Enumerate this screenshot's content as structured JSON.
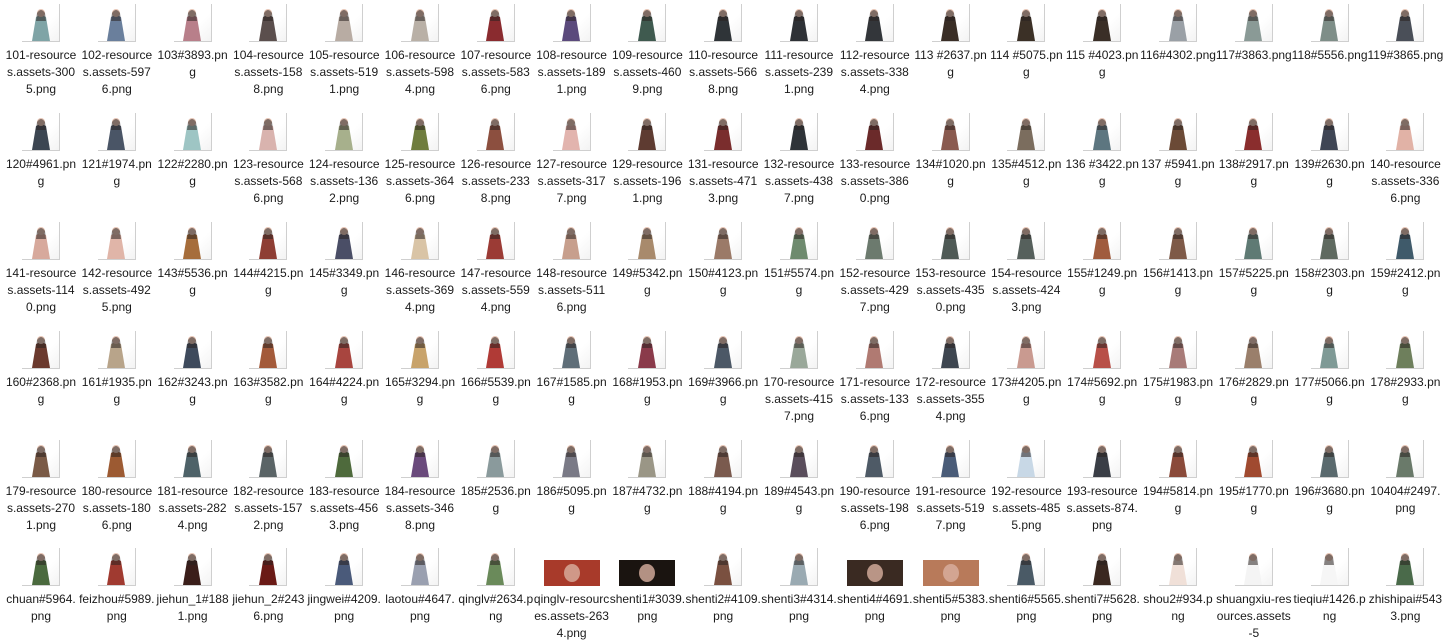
{
  "files": [
    {
      "name": "101-resources.assets-3005.png",
      "c": "#7fa4a6"
    },
    {
      "name": "102-resources.assets-5976.png",
      "c": "#6a7f9c"
    },
    {
      "name": "103#3893.png",
      "c": "#b87f8a"
    },
    {
      "name": "104-resources.assets-1588.png",
      "c": "#5b4f4d"
    },
    {
      "name": "105-resources.assets-5191.png",
      "c": "#b8aca3"
    },
    {
      "name": "106-resources.assets-5984.png",
      "c": "#b9b0a6"
    },
    {
      "name": "107-resources.assets-5836.png",
      "c": "#8a2b2f"
    },
    {
      "name": "108-resources.assets-1891.png",
      "c": "#5b4a7c"
    },
    {
      "name": "109-resources.assets-4609.png",
      "c": "#3f5a4f"
    },
    {
      "name": "110-resources.assets-5668.png",
      "c": "#2f3438"
    },
    {
      "name": "111-resources.assets-2391.png",
      "c": "#2e3136"
    },
    {
      "name": "112-resources.assets-3384.png",
      "c": "#33363a"
    },
    {
      "name": "113 #2637.png",
      "c": "#3a2e26"
    },
    {
      "name": "114 #5075.png",
      "c": "#3b3026"
    },
    {
      "name": "115 #4023.png",
      "c": "#3a2f27"
    },
    {
      "name": "116#4302.png",
      "c": "#9aa0a6"
    },
    {
      "name": "117#3863.png",
      "c": "#8a9a96"
    },
    {
      "name": "118#5556.png",
      "c": "#7e8e88"
    },
    {
      "name": "119#3865.png",
      "c": "#4a4f58"
    },
    {
      "name": "120#4961.png",
      "c": "#3c4652"
    },
    {
      "name": "121#1974.png",
      "c": "#4a5566"
    },
    {
      "name": "122#2280.png",
      "c": "#9ec5c4"
    },
    {
      "name": "123-resources.assets-5686.png",
      "c": "#d9b3ae"
    },
    {
      "name": "124-resources.assets-1362.png",
      "c": "#a7b08c"
    },
    {
      "name": "125-resources.assets-3646.png",
      "c": "#6f7d3e"
    },
    {
      "name": "126-resources.assets-2338.png",
      "c": "#8c4f3f"
    },
    {
      "name": "127-resources.assets-3177.png",
      "c": "#e2b4ae"
    },
    {
      "name": "129-resources.assets-1961.png",
      "c": "#5e3b31"
    },
    {
      "name": "131-resources.assets-4713.png",
      "c": "#7a2d2d"
    },
    {
      "name": "132-resources.assets-4387.png",
      "c": "#2e3338"
    },
    {
      "name": "133-resources.assets-3860.png",
      "c": "#6b2a2a"
    },
    {
      "name": "134#1020.png",
      "c": "#8a5a4f"
    },
    {
      "name": "135#4512.png",
      "c": "#7b6d5e"
    },
    {
      "name": "136 #3422.png",
      "c": "#5d7680"
    },
    {
      "name": "137 #5941.png",
      "c": "#6b4a36"
    },
    {
      "name": "138#2917.png",
      "c": "#8a2d2d"
    },
    {
      "name": "139#2630.png",
      "c": "#3f4655"
    },
    {
      "name": "140-resources.assets-3366.png",
      "c": "#e1b2a6"
    },
    {
      "name": "141-resources.assets-1140.png",
      "c": "#d7a99c"
    },
    {
      "name": "142-resources.assets-4925.png",
      "c": "#e0b5a8"
    },
    {
      "name": "143#5536.png",
      "c": "#a66d3b"
    },
    {
      "name": "144#4215.png",
      "c": "#8e3e34"
    },
    {
      "name": "145#3349.png",
      "c": "#4a4e66"
    },
    {
      "name": "146-resources.assets-3694.png",
      "c": "#d9c4a6"
    },
    {
      "name": "147-resources.assets-5594.png",
      "c": "#9b3b35"
    },
    {
      "name": "148-resources.assets-5116.png",
      "c": "#c79f8d"
    },
    {
      "name": "149#5342.png",
      "c": "#a88a6c"
    },
    {
      "name": "150#4123.png",
      "c": "#9b7a68"
    },
    {
      "name": "151#5574.png",
      "c": "#6e8a6e"
    },
    {
      "name": "152-resources.assets-4297.png",
      "c": "#6c7a6e"
    },
    {
      "name": "153-resources.assets-4350.png",
      "c": "#4f5a56"
    },
    {
      "name": "154-resources.assets-4243.png",
      "c": "#56605c"
    },
    {
      "name": "155#1249.png",
      "c": "#a05c3e"
    },
    {
      "name": "156#1413.png",
      "c": "#7e5a48"
    },
    {
      "name": "157#5225.png",
      "c": "#5f7a74"
    },
    {
      "name": "158#2303.png",
      "c": "#5f6a60"
    },
    {
      "name": "159#2412.png",
      "c": "#3f5a6a"
    },
    {
      "name": "160#2368.png",
      "c": "#6b3a2e"
    },
    {
      "name": "161#1935.png",
      "c": "#b8a48a"
    },
    {
      "name": "162#3243.png",
      "c": "#3e4a5c"
    },
    {
      "name": "163#3582.png",
      "c": "#a35a3a"
    },
    {
      "name": "164#4224.png",
      "c": "#a8453f"
    },
    {
      "name": "165#3294.png",
      "c": "#c8a36b"
    },
    {
      "name": "166#5539.png",
      "c": "#b03a36"
    },
    {
      "name": "167#1585.png",
      "c": "#5f6e78"
    },
    {
      "name": "168#1953.png",
      "c": "#8a3a4a"
    },
    {
      "name": "169#3966.png",
      "c": "#4c5866"
    },
    {
      "name": "170-resources.assets-4157.png",
      "c": "#9aa89a"
    },
    {
      "name": "171-resources.assets-1336.png",
      "c": "#b07a72"
    },
    {
      "name": "172-resources.assets-3554.png",
      "c": "#3e4650"
    },
    {
      "name": "173#4205.png",
      "c": "#c99a90"
    },
    {
      "name": "174#5692.png",
      "c": "#b85048"
    },
    {
      "name": "175#1983.png",
      "c": "#a87b78"
    },
    {
      "name": "176#2829.png",
      "c": "#9a7f6b"
    },
    {
      "name": "177#5066.png",
      "c": "#7f9a96"
    },
    {
      "name": "178#2933.png",
      "c": "#6e7f5c"
    },
    {
      "name": "179-resources.assets-2701.png",
      "c": "#7a5a46"
    },
    {
      "name": "180-resources.assets-1806.png",
      "c": "#9c5a32"
    },
    {
      "name": "181-resources.assets-2824.png",
      "c": "#4e6268"
    },
    {
      "name": "182-resources.assets-1572.png",
      "c": "#5a6466"
    },
    {
      "name": "183-resources.assets-4563.png",
      "c": "#4e6a3c"
    },
    {
      "name": "184-resources.assets-3468.png",
      "c": "#6a4a7c"
    },
    {
      "name": "185#2536.png",
      "c": "#8a9a9c"
    },
    {
      "name": "186#5095.png",
      "c": "#7a7a86"
    },
    {
      "name": "187#4732.png",
      "c": "#9a9686"
    },
    {
      "name": "188#4194.png",
      "c": "#7a5a4e"
    },
    {
      "name": "189#4543.png",
      "c": "#5a4e5c"
    },
    {
      "name": "190-resources.assets-1986.png",
      "c": "#4e5a66"
    },
    {
      "name": "191-resources.assets-5197.png",
      "c": "#4a5c78"
    },
    {
      "name": "192-resources.assets-4855.png",
      "c": "#c8d8e6"
    },
    {
      "name": "193-resources.assets-874.png",
      "c": "#3a3e46"
    },
    {
      "name": "194#5814.png",
      "c": "#8a4a3a"
    },
    {
      "name": "195#1770.png",
      "c": "#a04a30"
    },
    {
      "name": "196#3680.png",
      "c": "#5a6a6e"
    },
    {
      "name": "10404#2497.png",
      "c": "#6a7a6a"
    },
    {
      "name": "chuan#5964.png",
      "c": "#4a6a3e"
    },
    {
      "name": "feizhou#5989.png",
      "c": "#a03a30"
    },
    {
      "name": "jiehun_1#1881.png",
      "c": "#3a1e1a"
    },
    {
      "name": "jiehun_2#2436.png",
      "c": "#6a1a16"
    },
    {
      "name": "jingwei#4209.png",
      "c": "#4a5a7a"
    },
    {
      "name": "laotou#4647.png",
      "c": "#9aa0b0"
    },
    {
      "name": "qinglv#2634.png",
      "c": "#6a8a5a"
    },
    {
      "name": "qinglv-resources.assets-2634.png",
      "c": "#a83a2a"
    },
    {
      "name": "shenti1#3039.png",
      "c": "#1a1410"
    },
    {
      "name": "shenti2#4109.png",
      "c": "#7a5040"
    },
    {
      "name": "shenti3#4314.png",
      "c": "#9aaab2"
    },
    {
      "name": "shenti4#4691.png",
      "c": "#3a2a22"
    },
    {
      "name": "shenti5#5383.png",
      "c": "#b87a5a"
    },
    {
      "name": "shenti6#5565.png",
      "c": "#4a5a66"
    },
    {
      "name": "shenti7#5628.png",
      "c": "#3a2820"
    },
    {
      "name": "shou2#934.png",
      "c": "#f0e0d8"
    },
    {
      "name": "shuangxiu-resources.assets-5",
      "c": "#f4f4f4"
    },
    {
      "name": "tieqiu#1426.png",
      "c": "#f6f6f6"
    },
    {
      "name": "zhishipai#5433.png",
      "c": "#4a6a4a"
    }
  ]
}
